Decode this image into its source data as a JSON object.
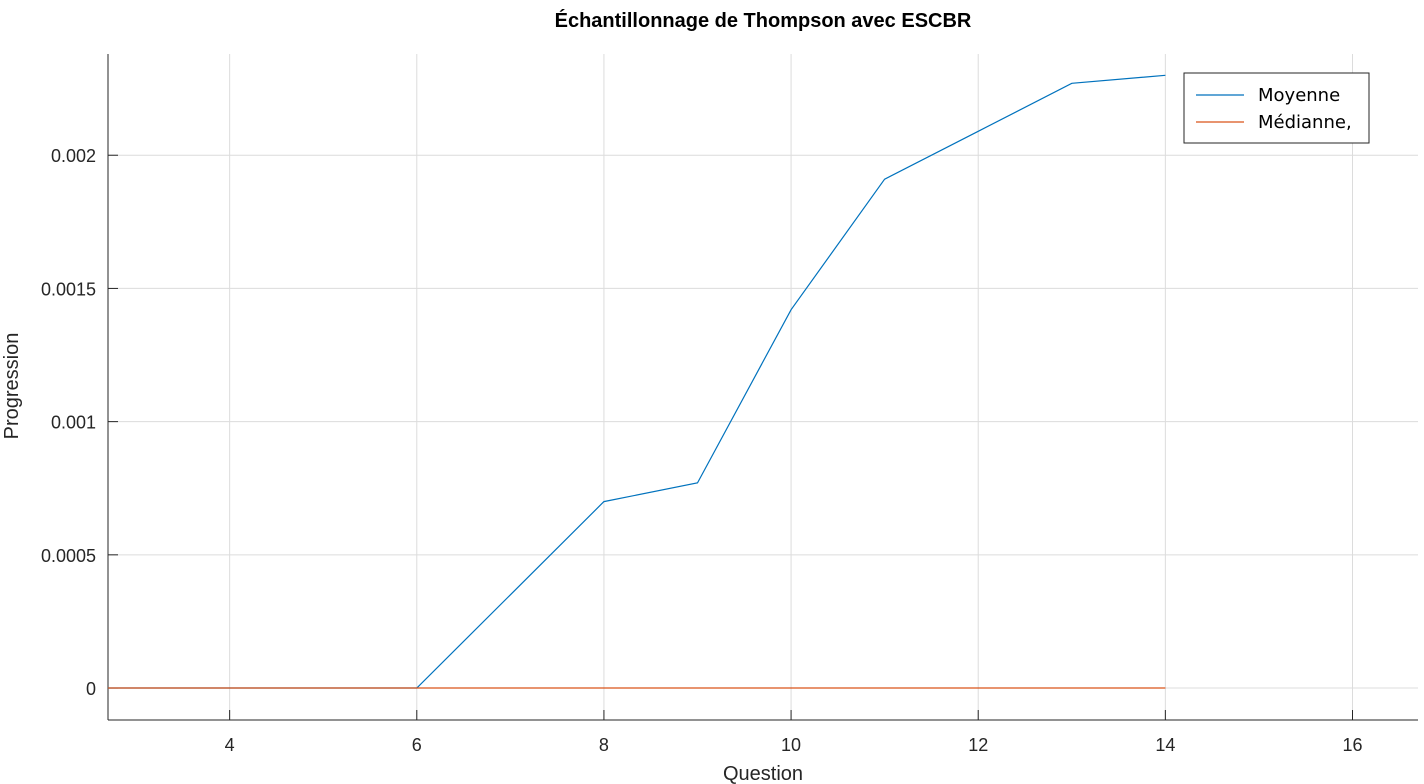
{
  "chart_data": {
    "type": "line",
    "title": "Échantillonnage de Thompson avec ESCBR",
    "xlabel": "Question",
    "ylabel": "Progression",
    "xlim": [
      2.7,
      16.7
    ],
    "ylim": [
      -0.00012,
      0.00238
    ],
    "x_ticks": [
      4,
      6,
      8,
      10,
      12,
      14,
      16
    ],
    "x_tick_labels": [
      "4",
      "6",
      "8",
      "10",
      "12",
      "14",
      "16"
    ],
    "y_ticks": [
      0,
      0.0005,
      0.001,
      0.0015,
      0.002
    ],
    "y_tick_labels": [
      "0",
      "0.0005",
      "0.001",
      "0.0015",
      "0.002"
    ],
    "grid": true,
    "legend_position": "top-right",
    "series": [
      {
        "name": "Moyenne",
        "color": "#0072bd",
        "x": [
          2.7,
          3,
          4,
          5,
          6,
          7,
          8,
          9,
          10,
          11,
          12,
          13,
          14
        ],
        "y": [
          0,
          0,
          0,
          0,
          0,
          0.00035,
          0.0007,
          0.00077,
          0.00142,
          0.00191,
          0.00209,
          0.00227,
          0.0023
        ]
      },
      {
        "name": "Médianne,",
        "color": "#d95319",
        "x": [
          2.7,
          3,
          4,
          5,
          6,
          7,
          8,
          9,
          10,
          11,
          12,
          13,
          14
        ],
        "y": [
          0,
          0,
          0,
          0,
          0,
          0,
          0,
          0,
          0,
          0,
          0,
          0,
          0
        ]
      }
    ]
  }
}
